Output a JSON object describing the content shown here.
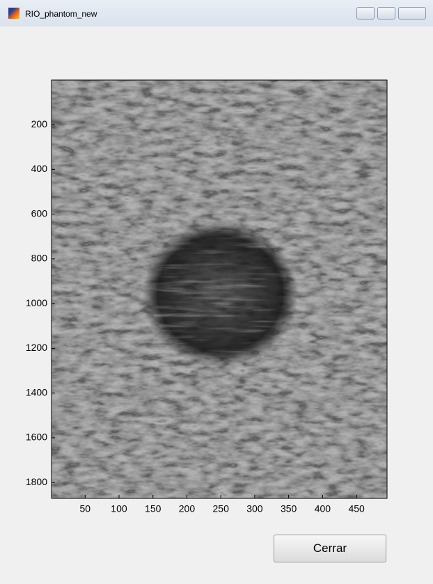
{
  "window": {
    "title": "RIO_phantom_new"
  },
  "image_axes": {
    "xlim": [
      0.5,
      495
    ],
    "ylim": [
      0.5,
      1871
    ],
    "xticks": [
      50,
      100,
      150,
      200,
      250,
      300,
      350,
      400,
      450
    ],
    "yticks": [
      200,
      400,
      600,
      800,
      1000,
      1200,
      1400,
      1600,
      1800
    ]
  },
  "button": {
    "label": "Cerrar"
  }
}
